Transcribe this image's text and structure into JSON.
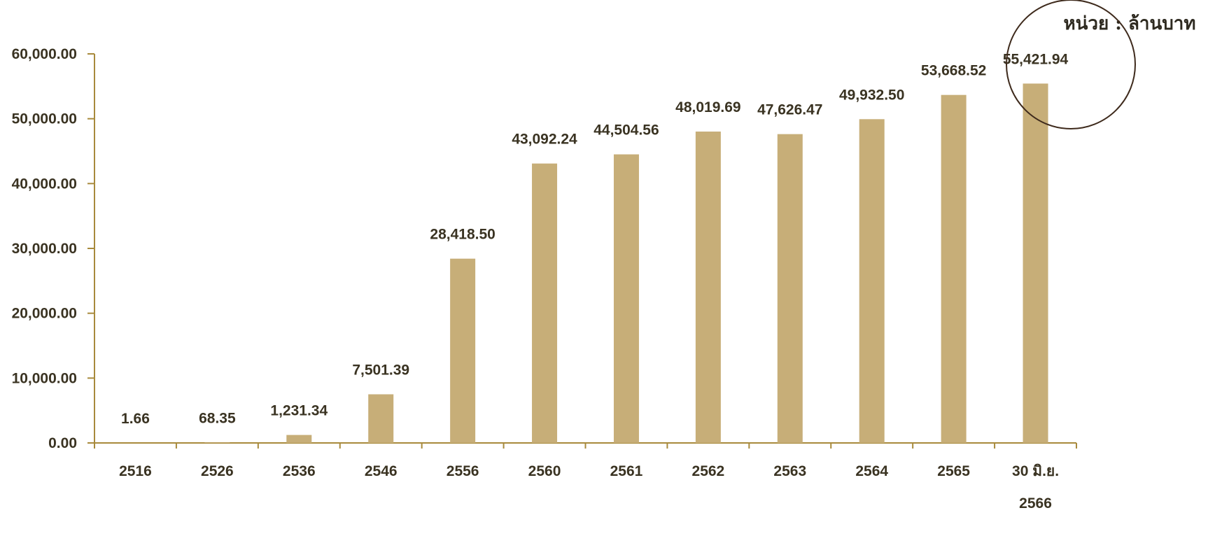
{
  "chart_data": {
    "type": "bar",
    "unit_label": "หน่วย : ล้านบาท",
    "categories": [
      "2516",
      "2526",
      "2536",
      "2546",
      "2556",
      "2560",
      "2561",
      "2562",
      "2563",
      "2564",
      "2565",
      "30 มิ.ย. 2566"
    ],
    "category_lines": [
      [
        "2516"
      ],
      [
        "2526"
      ],
      [
        "2536"
      ],
      [
        "2546"
      ],
      [
        "2556"
      ],
      [
        "2560"
      ],
      [
        "2561"
      ],
      [
        "2562"
      ],
      [
        "2563"
      ],
      [
        "2564"
      ],
      [
        "2565"
      ],
      [
        "30 มิ.ย.",
        "2566"
      ]
    ],
    "values": [
      1.66,
      68.35,
      1231.34,
      7501.39,
      28418.5,
      43092.24,
      44504.56,
      48019.69,
      47626.47,
      49932.5,
      53668.52,
      55421.94
    ],
    "value_labels": [
      "1.66",
      "68.35",
      "1,231.34",
      "7,501.39",
      "28,418.50",
      "43,092.24",
      "44,504.56",
      "48,019.69",
      "47,626.47",
      "49,932.50",
      "53,668.52",
      "55,421.94"
    ],
    "ylim": [
      0,
      60000
    ],
    "yticks": [
      0,
      10000,
      20000,
      30000,
      40000,
      50000,
      60000
    ],
    "ytick_labels": [
      "0.00",
      "10,000.00",
      "20,000.00",
      "30,000.00",
      "40,000.00",
      "50,000.00",
      "60,000.00"
    ],
    "grid": false,
    "highlighted_category": "30 มิ.ย. 2566",
    "colors": {
      "bar": "#c7ae78",
      "axis": "#a88a3c",
      "text": "#3a3322",
      "highlight_circle": "#3e2a1c"
    }
  }
}
